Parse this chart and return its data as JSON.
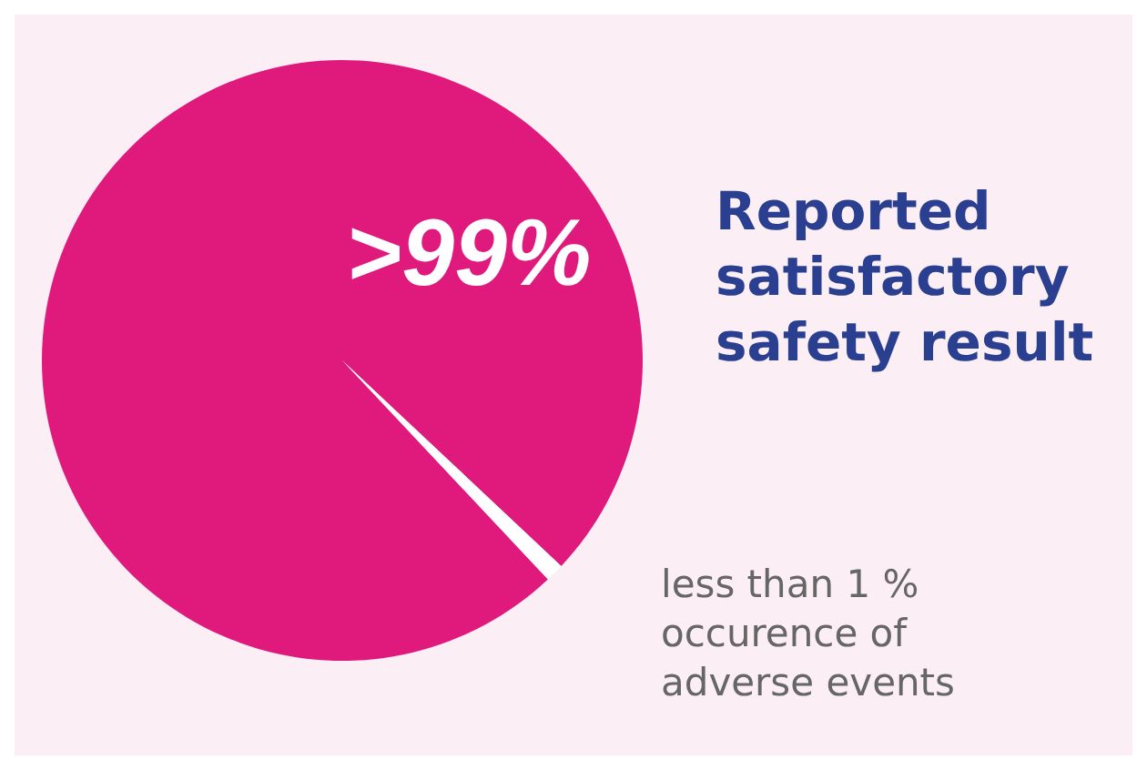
{
  "chart_data": {
    "type": "pie",
    "categories": [
      "Reported satisfactory safety result",
      "less than 1 % occurence of adverse events"
    ],
    "values": [
      99,
      1
    ],
    "colors": [
      "#e0197d",
      "#ffffff"
    ],
    "value_labels": [
      ">99%",
      null
    ],
    "legend": false
  }
}
